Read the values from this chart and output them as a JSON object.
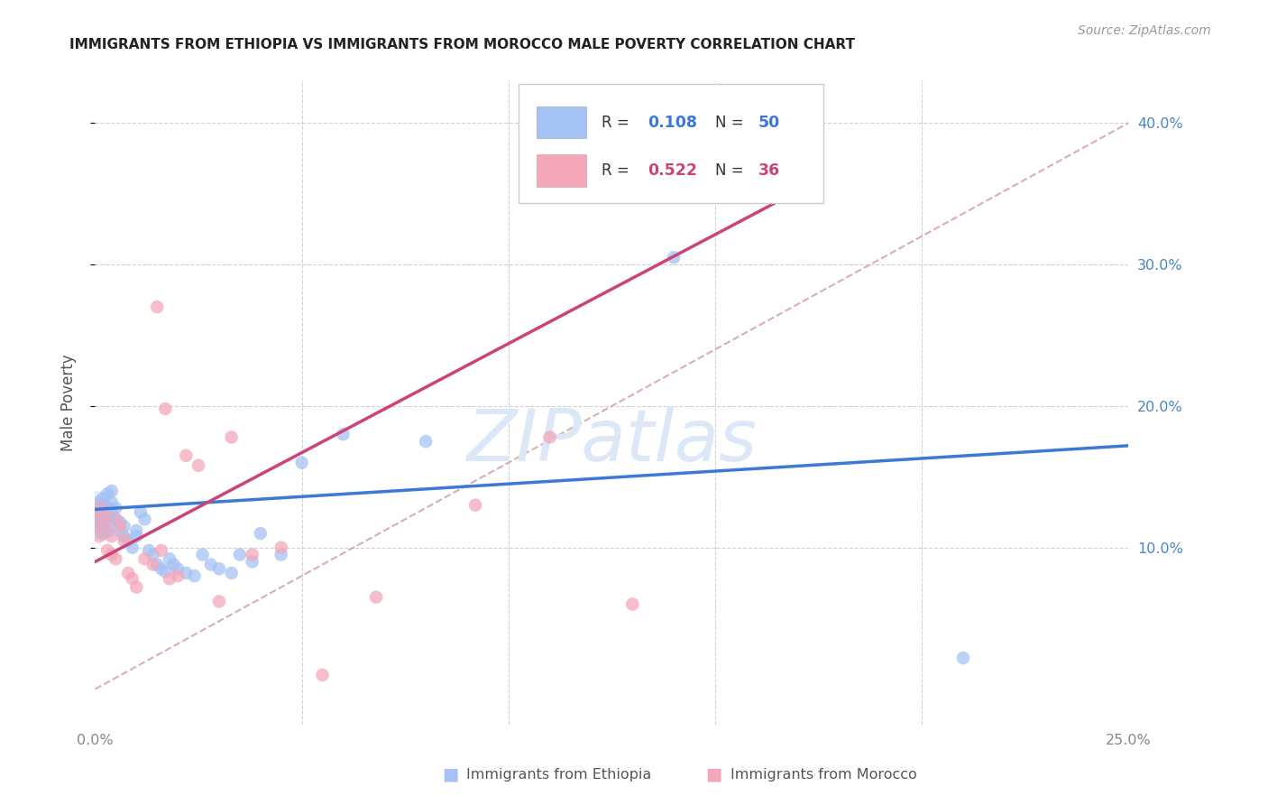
{
  "title": "IMMIGRANTS FROM ETHIOPIA VS IMMIGRANTS FROM MOROCCO MALE POVERTY CORRELATION CHART",
  "source": "Source: ZipAtlas.com",
  "ylabel": "Male Poverty",
  "xlim": [
    0.0,
    0.25
  ],
  "ylim": [
    -0.025,
    0.43
  ],
  "legend1_R": "0.108",
  "legend1_N": "50",
  "legend2_R": "0.522",
  "legend2_N": "36",
  "blue_scatter_color": "#a4c2f4",
  "pink_scatter_color": "#f4a7b9",
  "blue_line_color": "#3c78d8",
  "pink_line_color": "#cc4477",
  "diag_line_color": "#d5a0a0",
  "watermark_color": "#dce8f8",
  "background_color": "#ffffff",
  "grid_color": "#cccccc",
  "right_axis_color": "#4a86c8",
  "title_color": "#222222",
  "source_color": "#999999",
  "ylabel_color": "#555555",
  "ethiopia_x": [
    0.001,
    0.001,
    0.001,
    0.001,
    0.001,
    0.002,
    0.002,
    0.002,
    0.002,
    0.003,
    0.003,
    0.003,
    0.004,
    0.004,
    0.004,
    0.005,
    0.005,
    0.006,
    0.006,
    0.007,
    0.007,
    0.008,
    0.009,
    0.01,
    0.01,
    0.011,
    0.012,
    0.013,
    0.014,
    0.015,
    0.016,
    0.017,
    0.018,
    0.019,
    0.02,
    0.022,
    0.024,
    0.026,
    0.028,
    0.03,
    0.033,
    0.035,
    0.038,
    0.04,
    0.045,
    0.05,
    0.06,
    0.08,
    0.14,
    0.21
  ],
  "ethiopia_y": [
    0.132,
    0.128,
    0.124,
    0.12,
    0.118,
    0.135,
    0.13,
    0.125,
    0.12,
    0.138,
    0.128,
    0.122,
    0.14,
    0.132,
    0.125,
    0.128,
    0.12,
    0.118,
    0.112,
    0.115,
    0.108,
    0.105,
    0.1,
    0.112,
    0.108,
    0.125,
    0.12,
    0.098,
    0.095,
    0.088,
    0.085,
    0.083,
    0.092,
    0.088,
    0.085,
    0.082,
    0.08,
    0.095,
    0.088,
    0.085,
    0.082,
    0.095,
    0.09,
    0.11,
    0.095,
    0.16,
    0.18,
    0.175,
    0.305,
    0.022
  ],
  "morocco_x": [
    0.001,
    0.001,
    0.001,
    0.001,
    0.002,
    0.002,
    0.002,
    0.003,
    0.003,
    0.004,
    0.004,
    0.005,
    0.005,
    0.006,
    0.007,
    0.008,
    0.009,
    0.01,
    0.012,
    0.014,
    0.015,
    0.016,
    0.017,
    0.018,
    0.02,
    0.022,
    0.025,
    0.03,
    0.033,
    0.038,
    0.045,
    0.055,
    0.068,
    0.092,
    0.11,
    0.13
  ],
  "morocco_y": [
    0.128,
    0.122,
    0.115,
    0.108,
    0.125,
    0.118,
    0.11,
    0.112,
    0.098,
    0.095,
    0.108,
    0.12,
    0.092,
    0.115,
    0.105,
    0.082,
    0.078,
    0.072,
    0.092,
    0.088,
    0.27,
    0.098,
    0.198,
    0.078,
    0.08,
    0.165,
    0.158,
    0.062,
    0.178,
    0.095,
    0.1,
    0.01,
    0.065,
    0.13,
    0.178,
    0.06
  ],
  "eth_line_x0": 0.0,
  "eth_line_y0": 0.127,
  "eth_line_x1": 0.25,
  "eth_line_y1": 0.172,
  "mor_line_x0": 0.0,
  "mor_line_y0": 0.09,
  "mor_line_x1": 0.17,
  "mor_line_y1": 0.352
}
